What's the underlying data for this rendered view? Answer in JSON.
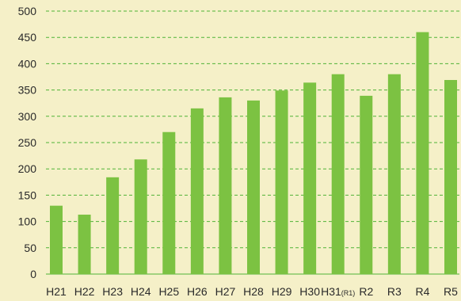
{
  "chart_data": {
    "type": "bar",
    "categories": [
      "H21",
      "H22",
      "H23",
      "H24",
      "H25",
      "H26",
      "H27",
      "H28",
      "H29",
      "H30",
      "H31(R1)",
      "R2",
      "R3",
      "R4",
      "R5"
    ],
    "values": [
      130,
      113,
      184,
      218,
      270,
      315,
      336,
      330,
      349,
      364,
      380,
      339,
      380,
      460,
      369
    ],
    "title": "",
    "xlabel": "",
    "ylabel": "",
    "ylim": [
      0,
      500
    ],
    "yticks": [
      0,
      50,
      100,
      150,
      200,
      250,
      300,
      350,
      400,
      450,
      500
    ],
    "grid": true,
    "legend": "none",
    "colors": {
      "bar": "#7cc242",
      "grid": "#4fb336",
      "background": "#f5f0c8",
      "text": "#2a2a2a"
    }
  }
}
